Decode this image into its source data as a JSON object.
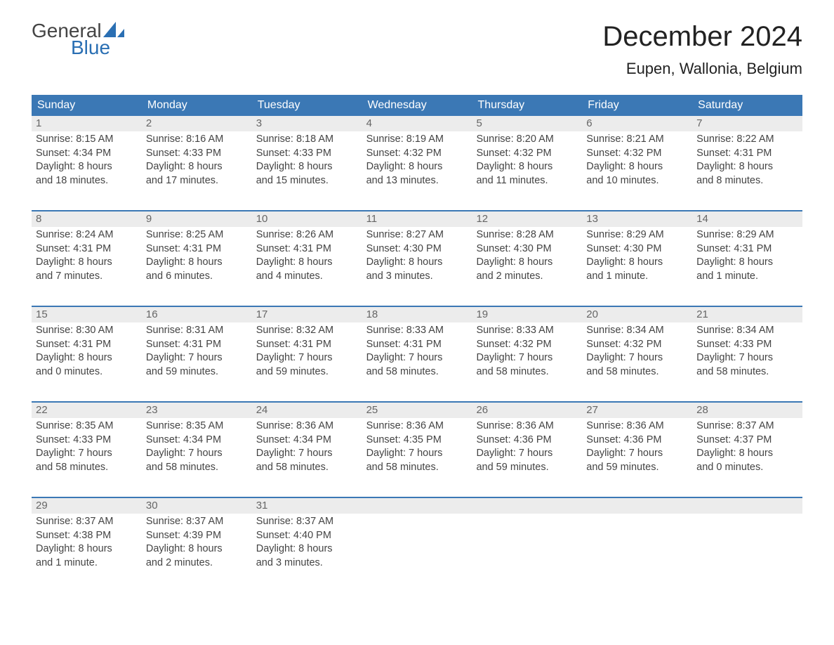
{
  "logo": {
    "text1": "General",
    "text2": "Blue",
    "accent_color": "#2a6fb3"
  },
  "title": "December 2024",
  "location": "Eupen, Wallonia, Belgium",
  "header_bg": "#3b78b5",
  "daynum_bg": "#ececec",
  "week_border": "#3b78b5",
  "text_color": "#444444",
  "days_of_week": [
    "Sunday",
    "Monday",
    "Tuesday",
    "Wednesday",
    "Thursday",
    "Friday",
    "Saturday"
  ],
  "weeks": [
    [
      {
        "n": "1",
        "sr": "Sunrise: 8:15 AM",
        "ss": "Sunset: 4:34 PM",
        "d1": "Daylight: 8 hours",
        "d2": "and 18 minutes."
      },
      {
        "n": "2",
        "sr": "Sunrise: 8:16 AM",
        "ss": "Sunset: 4:33 PM",
        "d1": "Daylight: 8 hours",
        "d2": "and 17 minutes."
      },
      {
        "n": "3",
        "sr": "Sunrise: 8:18 AM",
        "ss": "Sunset: 4:33 PM",
        "d1": "Daylight: 8 hours",
        "d2": "and 15 minutes."
      },
      {
        "n": "4",
        "sr": "Sunrise: 8:19 AM",
        "ss": "Sunset: 4:32 PM",
        "d1": "Daylight: 8 hours",
        "d2": "and 13 minutes."
      },
      {
        "n": "5",
        "sr": "Sunrise: 8:20 AM",
        "ss": "Sunset: 4:32 PM",
        "d1": "Daylight: 8 hours",
        "d2": "and 11 minutes."
      },
      {
        "n": "6",
        "sr": "Sunrise: 8:21 AM",
        "ss": "Sunset: 4:32 PM",
        "d1": "Daylight: 8 hours",
        "d2": "and 10 minutes."
      },
      {
        "n": "7",
        "sr": "Sunrise: 8:22 AM",
        "ss": "Sunset: 4:31 PM",
        "d1": "Daylight: 8 hours",
        "d2": "and 8 minutes."
      }
    ],
    [
      {
        "n": "8",
        "sr": "Sunrise: 8:24 AM",
        "ss": "Sunset: 4:31 PM",
        "d1": "Daylight: 8 hours",
        "d2": "and 7 minutes."
      },
      {
        "n": "9",
        "sr": "Sunrise: 8:25 AM",
        "ss": "Sunset: 4:31 PM",
        "d1": "Daylight: 8 hours",
        "d2": "and 6 minutes."
      },
      {
        "n": "10",
        "sr": "Sunrise: 8:26 AM",
        "ss": "Sunset: 4:31 PM",
        "d1": "Daylight: 8 hours",
        "d2": "and 4 minutes."
      },
      {
        "n": "11",
        "sr": "Sunrise: 8:27 AM",
        "ss": "Sunset: 4:30 PM",
        "d1": "Daylight: 8 hours",
        "d2": "and 3 minutes."
      },
      {
        "n": "12",
        "sr": "Sunrise: 8:28 AM",
        "ss": "Sunset: 4:30 PM",
        "d1": "Daylight: 8 hours",
        "d2": "and 2 minutes."
      },
      {
        "n": "13",
        "sr": "Sunrise: 8:29 AM",
        "ss": "Sunset: 4:30 PM",
        "d1": "Daylight: 8 hours",
        "d2": "and 1 minute."
      },
      {
        "n": "14",
        "sr": "Sunrise: 8:29 AM",
        "ss": "Sunset: 4:31 PM",
        "d1": "Daylight: 8 hours",
        "d2": "and 1 minute."
      }
    ],
    [
      {
        "n": "15",
        "sr": "Sunrise: 8:30 AM",
        "ss": "Sunset: 4:31 PM",
        "d1": "Daylight: 8 hours",
        "d2": "and 0 minutes."
      },
      {
        "n": "16",
        "sr": "Sunrise: 8:31 AM",
        "ss": "Sunset: 4:31 PM",
        "d1": "Daylight: 7 hours",
        "d2": "and 59 minutes."
      },
      {
        "n": "17",
        "sr": "Sunrise: 8:32 AM",
        "ss": "Sunset: 4:31 PM",
        "d1": "Daylight: 7 hours",
        "d2": "and 59 minutes."
      },
      {
        "n": "18",
        "sr": "Sunrise: 8:33 AM",
        "ss": "Sunset: 4:31 PM",
        "d1": "Daylight: 7 hours",
        "d2": "and 58 minutes."
      },
      {
        "n": "19",
        "sr": "Sunrise: 8:33 AM",
        "ss": "Sunset: 4:32 PM",
        "d1": "Daylight: 7 hours",
        "d2": "and 58 minutes."
      },
      {
        "n": "20",
        "sr": "Sunrise: 8:34 AM",
        "ss": "Sunset: 4:32 PM",
        "d1": "Daylight: 7 hours",
        "d2": "and 58 minutes."
      },
      {
        "n": "21",
        "sr": "Sunrise: 8:34 AM",
        "ss": "Sunset: 4:33 PM",
        "d1": "Daylight: 7 hours",
        "d2": "and 58 minutes."
      }
    ],
    [
      {
        "n": "22",
        "sr": "Sunrise: 8:35 AM",
        "ss": "Sunset: 4:33 PM",
        "d1": "Daylight: 7 hours",
        "d2": "and 58 minutes."
      },
      {
        "n": "23",
        "sr": "Sunrise: 8:35 AM",
        "ss": "Sunset: 4:34 PM",
        "d1": "Daylight: 7 hours",
        "d2": "and 58 minutes."
      },
      {
        "n": "24",
        "sr": "Sunrise: 8:36 AM",
        "ss": "Sunset: 4:34 PM",
        "d1": "Daylight: 7 hours",
        "d2": "and 58 minutes."
      },
      {
        "n": "25",
        "sr": "Sunrise: 8:36 AM",
        "ss": "Sunset: 4:35 PM",
        "d1": "Daylight: 7 hours",
        "d2": "and 58 minutes."
      },
      {
        "n": "26",
        "sr": "Sunrise: 8:36 AM",
        "ss": "Sunset: 4:36 PM",
        "d1": "Daylight: 7 hours",
        "d2": "and 59 minutes."
      },
      {
        "n": "27",
        "sr": "Sunrise: 8:36 AM",
        "ss": "Sunset: 4:36 PM",
        "d1": "Daylight: 7 hours",
        "d2": "and 59 minutes."
      },
      {
        "n": "28",
        "sr": "Sunrise: 8:37 AM",
        "ss": "Sunset: 4:37 PM",
        "d1": "Daylight: 8 hours",
        "d2": "and 0 minutes."
      }
    ],
    [
      {
        "n": "29",
        "sr": "Sunrise: 8:37 AM",
        "ss": "Sunset: 4:38 PM",
        "d1": "Daylight: 8 hours",
        "d2": "and 1 minute."
      },
      {
        "n": "30",
        "sr": "Sunrise: 8:37 AM",
        "ss": "Sunset: 4:39 PM",
        "d1": "Daylight: 8 hours",
        "d2": "and 2 minutes."
      },
      {
        "n": "31",
        "sr": "Sunrise: 8:37 AM",
        "ss": "Sunset: 4:40 PM",
        "d1": "Daylight: 8 hours",
        "d2": "and 3 minutes."
      },
      {
        "empty": true
      },
      {
        "empty": true
      },
      {
        "empty": true
      },
      {
        "empty": true
      }
    ]
  ]
}
